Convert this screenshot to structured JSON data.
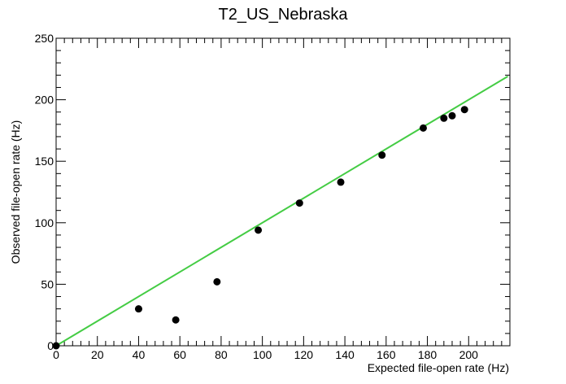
{
  "chart_data": {
    "type": "scatter",
    "title": "T2_US_Nebraska",
    "xlabel": "Expected file-open rate (Hz)",
    "ylabel": "Observed file-open rate (Hz)",
    "xlim": [
      0,
      220
    ],
    "ylim": [
      0,
      250
    ],
    "x_ticks": [
      0,
      20,
      40,
      60,
      80,
      100,
      120,
      140,
      160,
      180,
      200
    ],
    "y_ticks": [
      0,
      50,
      100,
      150,
      200,
      250
    ],
    "grid": false,
    "series": [
      {
        "marker": "circle",
        "color": "#000000",
        "points": [
          {
            "x": 0,
            "y": 0
          },
          {
            "x": 40,
            "y": 30
          },
          {
            "x": 58,
            "y": 21
          },
          {
            "x": 78,
            "y": 52
          },
          {
            "x": 98,
            "y": 94
          },
          {
            "x": 118,
            "y": 116
          },
          {
            "x": 138,
            "y": 133
          },
          {
            "x": 158,
            "y": 155
          },
          {
            "x": 178,
            "y": 177
          },
          {
            "x": 188,
            "y": 185
          },
          {
            "x": 192,
            "y": 187
          },
          {
            "x": 198,
            "y": 192
          }
        ]
      }
    ],
    "fit_line": {
      "color": "#44cc44",
      "from": {
        "x": 0,
        "y": 0
      },
      "to": {
        "x": 219,
        "y": 219
      }
    }
  }
}
